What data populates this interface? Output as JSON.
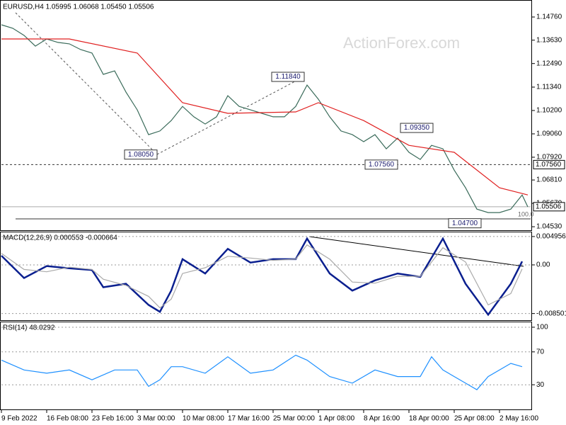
{
  "chart_data": [
    {
      "type": "line",
      "title": "EURUSD,H4 1.05995 1.06068 1.05450 1.05506",
      "watermark": "ActionForex.com",
      "xlim": [
        0,
        374
      ],
      "ylim": [
        1.0436,
        1.1552
      ],
      "yticks": [
        {
          "value": 1.1476,
          "label": "1.14760"
        },
        {
          "value": 1.1363,
          "label": "1.13630"
        },
        {
          "value": 1.1249,
          "label": "1.12490"
        },
        {
          "value": 1.1134,
          "label": "1.11340"
        },
        {
          "value": 1.102,
          "label": "1.10200"
        },
        {
          "value": 1.0906,
          "label": "1.09060"
        },
        {
          "value": 1.0792,
          "label": "1.07920"
        },
        {
          "value": 1.0681,
          "label": "1.06810"
        },
        {
          "value": 1.0567,
          "label": "1.05670"
        },
        {
          "value": 1.0453,
          "label": "1.04530"
        }
      ],
      "grid": false,
      "x": [
        0,
        8,
        16,
        24,
        32,
        40,
        48,
        56,
        64,
        72,
        80,
        88,
        96,
        104,
        112,
        120,
        128,
        136,
        144,
        152,
        160,
        168,
        176,
        184,
        192,
        200,
        208,
        216,
        224,
        232,
        240,
        248,
        256,
        264,
        272,
        280,
        288,
        296,
        304,
        312,
        320,
        328,
        336,
        344,
        352,
        360,
        368,
        372
      ],
      "series": [
        {
          "color": "#3a6b5a",
          "values": [
            1.1438,
            1.1421,
            1.1386,
            1.1334,
            1.1369,
            1.1352,
            1.1345,
            1.1317,
            1.13,
            1.1196,
            1.1213,
            1.111,
            1.1023,
            1.0902,
            1.092,
            1.0971,
            1.104,
            1.0989,
            1.0954,
            1.0989,
            1.1092,
            1.104,
            1.1023,
            1.1006,
            1.0989,
            1.0989,
            1.104,
            1.1144,
            1.1075,
            1.0989,
            1.092,
            1.0902,
            1.0868,
            1.0902,
            1.0833,
            1.0885,
            1.0816,
            1.0781,
            1.085,
            1.0833,
            1.0729,
            1.0643,
            1.0539,
            1.0522,
            1.0522,
            1.0539,
            1.0608,
            1.055
          ]
        },
        {
          "color": "#e02020",
          "x": [
            0,
            48,
            96,
            128,
            160,
            208,
            224,
            256,
            288,
            320,
            352,
            372
          ],
          "values": [
            1.1369,
            1.1369,
            1.13,
            1.1058,
            1.1006,
            1.1013,
            1.1058,
            1.0971,
            1.085,
            1.0816,
            1.0643,
            1.0608
          ]
        }
      ],
      "levels": [
        {
          "value": 1.0756,
          "label": "1.07560",
          "style": "dashed"
        },
        {
          "value": 1.05506,
          "label": "1.05506",
          "style": "solid"
        }
      ],
      "annotations": [
        {
          "label": "1.11840",
          "x": 214,
          "y": 1.1184
        },
        {
          "label": "1.08050",
          "x": 110,
          "y": 1.0805
        },
        {
          "label": "1.07560",
          "x": 280,
          "y": 1.0756
        },
        {
          "label": "1.09350",
          "x": 282,
          "y": 1.0935
        },
        {
          "label": "1.04700",
          "x": 339,
          "y": 1.047
        }
      ],
      "fibo_label": "100.0"
    },
    {
      "type": "line",
      "title": "MACD(12,26,9) 0.000553 -0.000664",
      "xlim": [
        0,
        374
      ],
      "ylim": [
        -0.00966,
        0.00569
      ],
      "yticks": [
        0.004956,
        {
          "value": 0,
          "label": "0.00"
        },
        -0.008501
      ],
      "grid": true,
      "x": [
        0,
        16,
        32,
        48,
        64,
        72,
        88,
        104,
        112,
        120,
        128,
        144,
        160,
        176,
        192,
        208,
        216,
        232,
        248,
        264,
        280,
        296,
        312,
        328,
        344,
        360,
        368
      ],
      "series": [
        {
          "color": "#0a1f8f",
          "values": [
            0.0016,
            -0.0023,
            -0.0002,
            -0.0006,
            -0.0009,
            -0.0039,
            -0.0033,
            -0.007,
            -0.0082,
            -0.0045,
            0.001,
            -0.0015,
            0.0028,
            0.0004,
            0.001,
            0.001,
            0.0046,
            -0.0015,
            -0.0045,
            -0.0027,
            -0.0015,
            -0.0021,
            0.0046,
            -0.0033,
            -0.0087,
            -0.0033,
            0.0006
          ]
        },
        {
          "color": "#aaaaaa",
          "values": [
            0.002,
            -0.0008,
            -0.0012,
            -0.0004,
            -0.0008,
            -0.0025,
            -0.0036,
            -0.0055,
            -0.0075,
            -0.006,
            -0.0015,
            -0.0005,
            0.0015,
            0.0012,
            0.0008,
            0.001,
            0.0035,
            0.001,
            -0.003,
            -0.0032,
            -0.002,
            -0.002,
            0.003,
            0.0005,
            -0.007,
            -0.005,
            -0.0007
          ]
        }
      ]
    },
    {
      "type": "line",
      "title": "RSI(14) 48.0292",
      "xlim": [
        0,
        374
      ],
      "ylim": [
        0,
        106
      ],
      "yticks": [
        100,
        70,
        30
      ],
      "grid": true,
      "x": [
        0,
        16,
        32,
        48,
        64,
        80,
        96,
        104,
        112,
        120,
        128,
        144,
        160,
        176,
        192,
        208,
        216,
        232,
        248,
        264,
        280,
        296,
        304,
        312,
        328,
        336,
        344,
        360,
        368
      ],
      "series": [
        {
          "color": "#1e90ff",
          "values": [
            60,
            48,
            44,
            48,
            36,
            48,
            48,
            28,
            36,
            52,
            52,
            44,
            64,
            44,
            48,
            66,
            60,
            40,
            32,
            48,
            40,
            40,
            64,
            48,
            32,
            24,
            40,
            56,
            52
          ]
        }
      ],
      "xticks": [
        {
          "value": 0,
          "label": "9 Feb 2022"
        },
        {
          "value": 32,
          "label": "16 Feb 08:00"
        },
        {
          "value": 64,
          "label": "23 Feb 16:00"
        },
        {
          "value": 96,
          "label": "3 Mar 00:00"
        },
        {
          "value": 128,
          "label": "10 Mar 08:00"
        },
        {
          "value": 160,
          "label": "17 Mar 16:00"
        },
        {
          "value": 192,
          "label": "25 Mar 00:00"
        },
        {
          "value": 224,
          "label": "1 Apr 08:00"
        },
        {
          "value": 256,
          "label": "8 Apr 16:00"
        },
        {
          "value": 288,
          "label": "18 Apr 00:00"
        },
        {
          "value": 320,
          "label": "25 Apr 08:00"
        },
        {
          "value": 352,
          "label": "2 May 16:00"
        }
      ]
    }
  ]
}
